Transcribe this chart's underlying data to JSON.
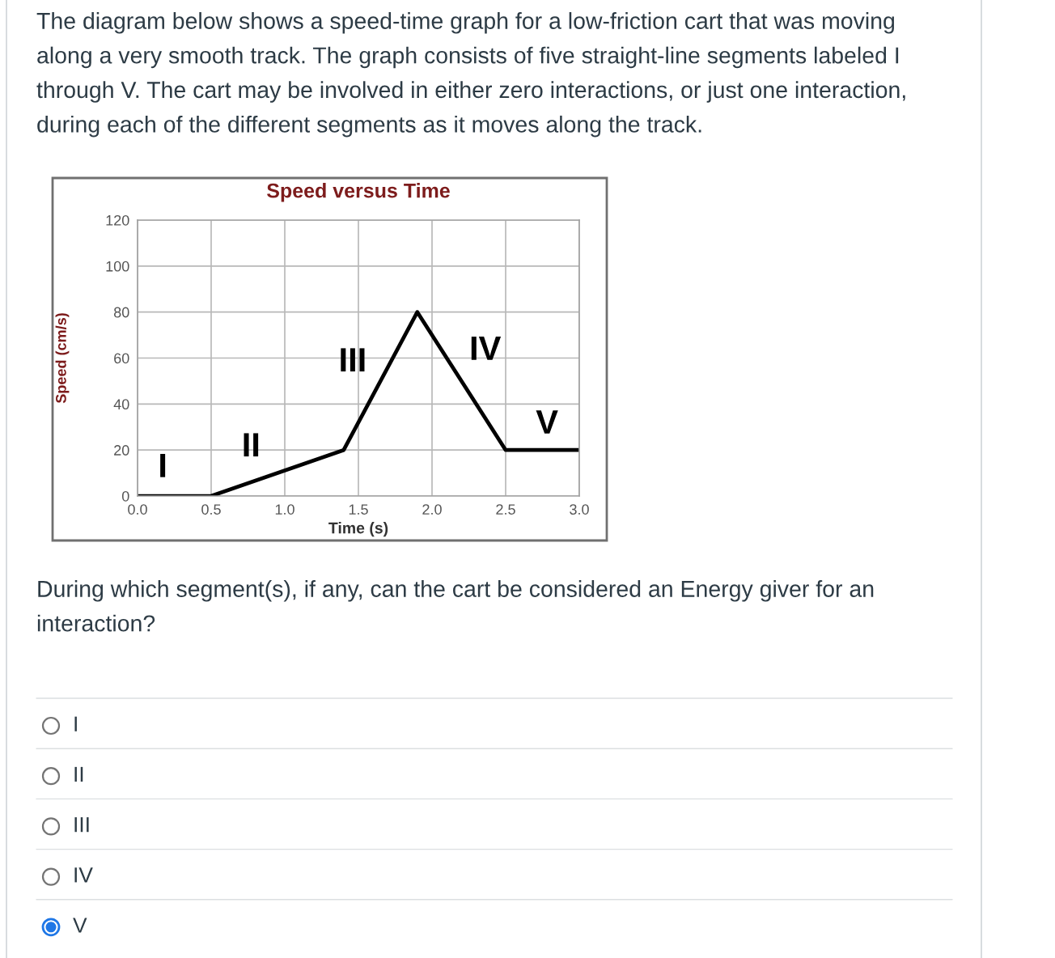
{
  "chart_data": {
    "type": "line",
    "title": "Speed versus Time",
    "xlabel": "Time (s)",
    "ylabel": "Speed (cm/s)",
    "x": [
      0,
      0.5,
      1.4,
      1.9,
      2.5,
      3.0
    ],
    "series": [
      {
        "color": "#000000",
        "values": [
          0,
          0,
          20,
          80,
          20,
          20
        ]
      }
    ],
    "xlim": [
      0,
      3
    ],
    "ylim": [
      0,
      120
    ],
    "xticks": [
      {
        "value": 0,
        "label": "0.0"
      },
      0.5,
      {
        "value": 1,
        "label": "1.0"
      },
      1.5,
      {
        "value": 2,
        "label": "2.0"
      },
      2.5,
      {
        "value": 3,
        "label": "3.0"
      }
    ],
    "yticks": [
      0,
      20,
      40,
      60,
      80,
      100,
      120
    ],
    "grid": true,
    "marker": "none",
    "line_style": "solid",
    "annotations": [
      "The diagram below shows a speed-time graph for a low-friction cart that was moving\nalong a very smooth track. The graph consists of five straight-line segments labeled I\nthrough V. The cart may be involved in either zero interactions, or just one interaction,\nduring each of the different segments as it moves along the track.",
      "I",
      "II",
      "III",
      "IV",
      "V",
      "During which segment(s), if any, can the cart be considered an Energy giver for an\ninteraction?",
      "I",
      "II",
      "III",
      "IV",
      "V"
    ]
  }
}
